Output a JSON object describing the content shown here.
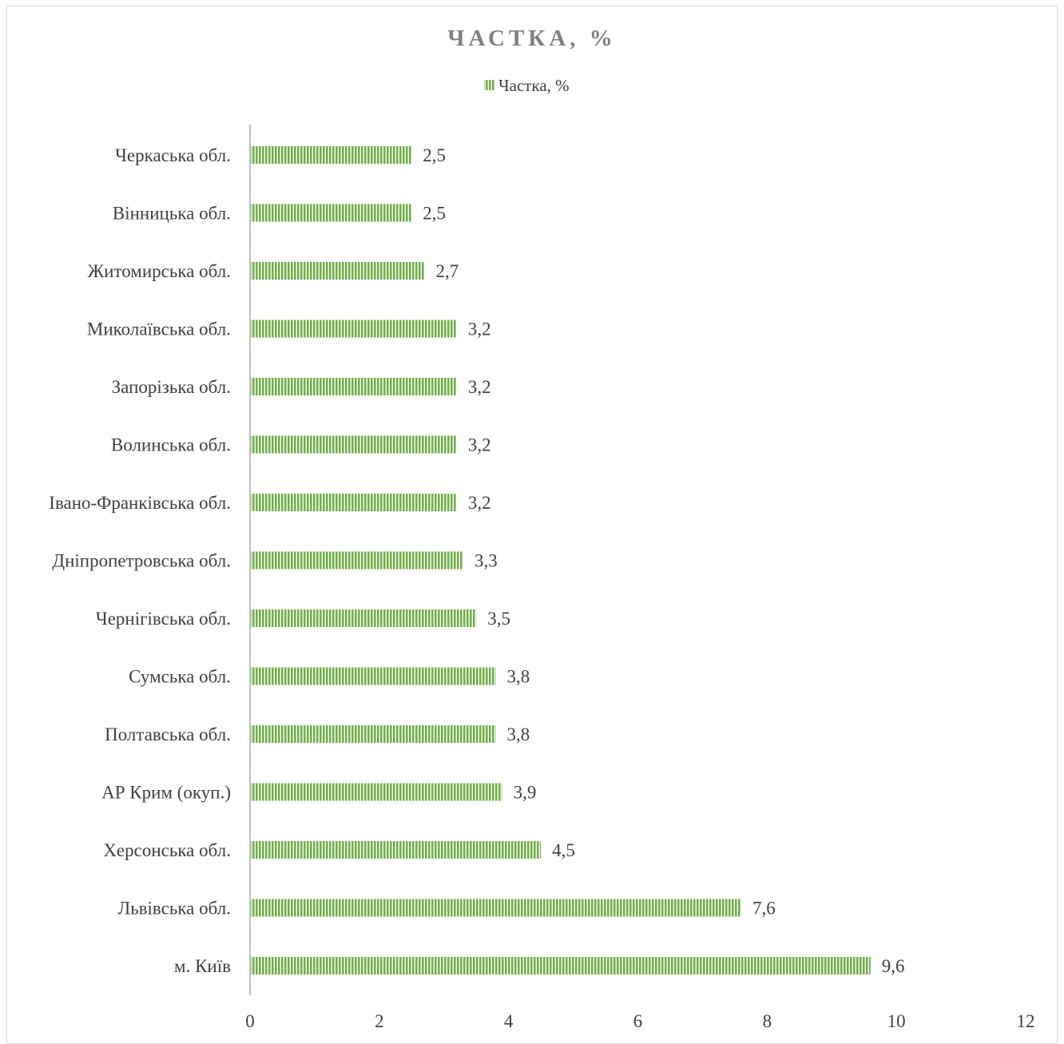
{
  "chart_data": {
    "type": "bar",
    "orientation": "horizontal",
    "title": "ЧАСТКА, %",
    "legend": {
      "position": "top",
      "entries": [
        "Частка, %"
      ]
    },
    "categories": [
      "Черкаська обл.",
      "Вінницька обл.",
      "Житомирська обл.",
      "Миколаївська обл.",
      "Запорізька обл.",
      "Волинська обл.",
      "Івано-Франківська обл.",
      "Дніпропетровська обл.",
      "Чернігівська обл.",
      "Сумська обл.",
      "Полтавська обл.",
      "АР Крим (окуп.)",
      "Херсонська обл.",
      "Львівська обл.",
      "м. Київ"
    ],
    "series": [
      {
        "name": "Частка, %",
        "values": [
          2.5,
          2.5,
          2.7,
          3.2,
          3.2,
          3.2,
          3.2,
          3.3,
          3.5,
          3.8,
          3.8,
          3.9,
          4.5,
          7.6,
          9.6
        ],
        "labels": [
          "2,5",
          "2,5",
          "2,7",
          "3,2",
          "3,2",
          "3,2",
          "3,2",
          "3,3",
          "3,5",
          "3,8",
          "3,8",
          "3,9",
          "4,5",
          "7,6",
          "9,6"
        ]
      }
    ],
    "xlim": [
      0,
      12
    ],
    "xticks": [
      "0",
      "2",
      "4",
      "6",
      "8",
      "10",
      "12"
    ],
    "grid": false,
    "colors": {
      "bar": "#70ad47",
      "bar_stripe": "#ffffff",
      "axis": "#bfbfbf"
    }
  }
}
